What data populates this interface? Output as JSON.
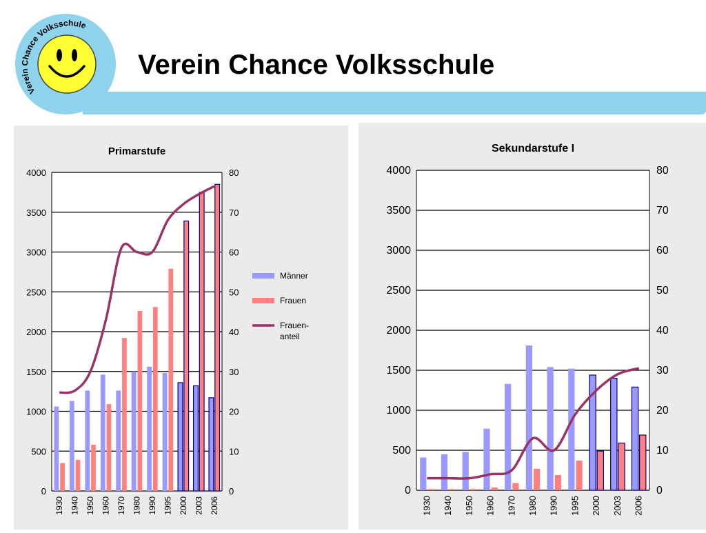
{
  "header": {
    "title": "Verein Chance Volksschule",
    "logo_text": "Verein Chance Volksschule",
    "bar_color": "#8fd3ec"
  },
  "chart_data": [
    {
      "type": "bar",
      "title": "Primarstufe",
      "categories": [
        "1930",
        "1940",
        "1950",
        "1960",
        "1970",
        "1980",
        "1990",
        "1995",
        "2000",
        "2003",
        "2006"
      ],
      "series": [
        {
          "name": "Männer",
          "axis": "left",
          "color": "#9999ff",
          "values": [
            1060,
            1130,
            1260,
            1460,
            1260,
            1500,
            1560,
            1480,
            1360,
            1320,
            1170
          ]
        },
        {
          "name": "Frauen",
          "axis": "left",
          "color": "#ff8080",
          "values": [
            350,
            390,
            580,
            1090,
            1920,
            2260,
            2310,
            2790,
            3390,
            3750,
            3850
          ]
        },
        {
          "name": "Frauen-anteil",
          "label_lines": [
            "Frauen-",
            "anteil"
          ],
          "type": "line",
          "axis": "right",
          "color": "#993366",
          "values": [
            24.7,
            25.2,
            30,
            43,
            61,
            60,
            60,
            68,
            72,
            74.5,
            76.5
          ]
        }
      ],
      "ylim": [
        0,
        4000
      ],
      "yticks": [
        0,
        500,
        1000,
        1500,
        2000,
        2500,
        3000,
        3500,
        4000
      ],
      "y2lim": [
        0,
        80
      ],
      "y2ticks": [
        0,
        10,
        20,
        30,
        40,
        50,
        60,
        70,
        80
      ],
      "legend": "right",
      "grid": true
    },
    {
      "type": "bar",
      "title": "Sekundarstufe I",
      "categories": [
        "1930",
        "1940",
        "1950",
        "1960",
        "1970",
        "1980",
        "1990",
        "1995",
        "2000",
        "2003",
        "2006"
      ],
      "series": [
        {
          "name": "Männer",
          "axis": "left",
          "color": "#9999ff",
          "values": [
            410,
            450,
            480,
            770,
            1330,
            1810,
            1540,
            1520,
            1440,
            1400,
            1290
          ]
        },
        {
          "name": "Frauen",
          "axis": "left",
          "color": "#ff8080",
          "values": [
            15,
            15,
            15,
            35,
            90,
            270,
            190,
            370,
            490,
            590,
            690
          ]
        },
        {
          "name": "Frauen-anteil",
          "type": "line",
          "axis": "right",
          "color": "#993366",
          "values": [
            3,
            3,
            3,
            4,
            5,
            13,
            10,
            19,
            25,
            29,
            30.5
          ]
        }
      ],
      "ylim": [
        0,
        4000
      ],
      "yticks": [
        0,
        500,
        1000,
        1500,
        2000,
        2500,
        3000,
        3500,
        4000
      ],
      "y2lim": [
        0,
        80
      ],
      "y2ticks": [
        0,
        10,
        20,
        30,
        40,
        50,
        60,
        70,
        80
      ],
      "legend": "none",
      "grid": true
    }
  ]
}
